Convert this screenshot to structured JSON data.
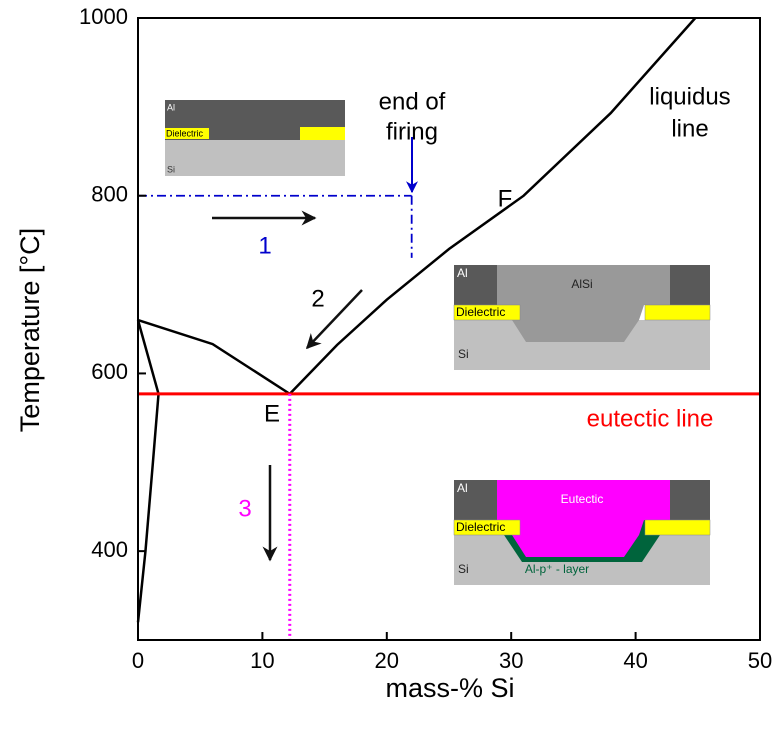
{
  "chart_data": {
    "type": "phase-diagram",
    "xlabel": "mass-% Si",
    "ylabel": "Temperature [°C]",
    "xlim": [
      0,
      50
    ],
    "xticks": [
      0,
      10,
      20,
      30,
      40,
      50
    ],
    "ylim": [
      300,
      1000
    ],
    "yticks": [
      400,
      600,
      800,
      1000
    ],
    "series": [
      {
        "color": "#000000",
        "style": "solid",
        "x": [
          12.2,
          16,
          20,
          25,
          31,
          38,
          44.8
        ],
        "values": [
          577,
          632,
          683,
          740,
          800,
          893,
          1000
        ]
      },
      {
        "color": "#000000",
        "style": "solid",
        "x": [
          0,
          6,
          12.2
        ],
        "values": [
          660,
          633,
          577
        ]
      },
      {
        "color": "#000000",
        "style": "solid",
        "x": [
          0,
          1.65,
          1.2,
          0.6,
          0
        ],
        "values": [
          660,
          577,
          500,
          400,
          320
        ]
      },
      {
        "color": "#ff0000",
        "style": "thick",
        "x": [
          0,
          50
        ],
        "values": [
          577,
          577
        ]
      },
      {
        "color": "#0000cc",
        "style": "dash-dot",
        "x": [
          0,
          22
        ],
        "values": [
          800,
          800
        ]
      },
      {
        "color": "#0000cc",
        "style": "dash-dot",
        "x": [
          22,
          22
        ],
        "values": [
          800,
          730
        ]
      },
      {
        "color": "#ff00ff",
        "style": "dotted",
        "x": [
          12.2,
          12.2
        ],
        "values": [
          577,
          300
        ]
      }
    ],
    "annotations": [
      {
        "text": "end of",
        "color": "#000000"
      },
      {
        "text": "firing",
        "color": "#000000"
      },
      {
        "text": "liquidus",
        "color": "#000000"
      },
      {
        "text": "line",
        "color": "#000000"
      },
      {
        "text": "F",
        "color": "#000000"
      },
      {
        "text": "E",
        "color": "#000000"
      },
      {
        "text": "1",
        "color": "#0000cc"
      },
      {
        "text": "2",
        "color": "#000000"
      },
      {
        "text": "3",
        "color": "#ff00ff"
      },
      {
        "text": "eutectic line",
        "color": "#ff0000"
      }
    ],
    "insets": [
      {
        "al": "Al",
        "dielectric": "Dielectric",
        "si": "Si"
      },
      {
        "al": "Al",
        "dielectric": "Dielectric",
        "si": "Si",
        "region": "AlSi"
      },
      {
        "al": "Al",
        "dielectric": "Dielectric",
        "si": "Si",
        "region": "Eutectic",
        "layer": "Al-p⁺ - layer"
      }
    ]
  }
}
